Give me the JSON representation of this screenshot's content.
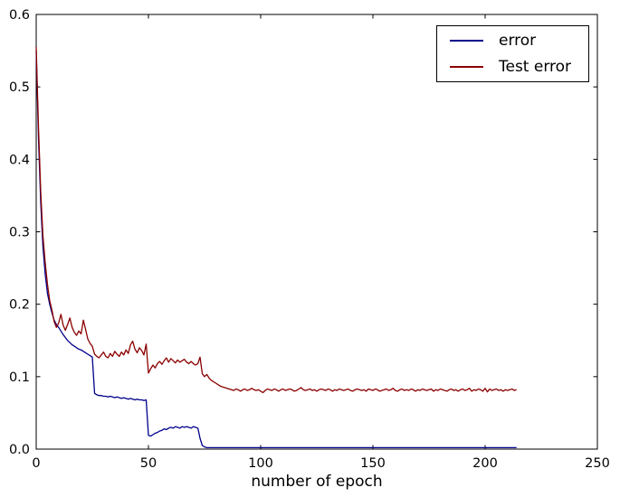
{
  "figure": {
    "background": "#ffffff",
    "frame_color": "#000000"
  },
  "chart_data": {
    "type": "line",
    "title": "",
    "xlabel": "number of epoch",
    "ylabel": "",
    "xlim": [
      0,
      250
    ],
    "ylim": [
      0.0,
      0.6
    ],
    "xticks": [
      "0",
      "50",
      "100",
      "150",
      "200",
      "250"
    ],
    "yticks": [
      "0.0",
      "0.1",
      "0.2",
      "0.3",
      "0.4",
      "0.5",
      "0.6"
    ],
    "grid": false,
    "legend_position": "upper right",
    "x_unit": "epoch",
    "series": [
      {
        "name": "error",
        "color": "#00008b",
        "x_step": 1,
        "values": [
          0.55,
          0.43,
          0.34,
          0.28,
          0.242,
          0.215,
          0.2,
          0.188,
          0.178,
          0.172,
          0.168,
          0.163,
          0.158,
          0.154,
          0.15,
          0.147,
          0.144,
          0.142,
          0.14,
          0.138,
          0.137,
          0.135,
          0.133,
          0.131,
          0.129,
          0.127,
          0.077,
          0.075,
          0.074,
          0.074,
          0.073,
          0.073,
          0.072,
          0.073,
          0.072,
          0.071,
          0.072,
          0.071,
          0.07,
          0.071,
          0.07,
          0.069,
          0.07,
          0.069,
          0.068,
          0.069,
          0.068,
          0.068,
          0.067,
          0.068,
          0.019,
          0.018,
          0.02,
          0.022,
          0.023,
          0.025,
          0.026,
          0.028,
          0.027,
          0.029,
          0.03,
          0.029,
          0.031,
          0.03,
          0.029,
          0.031,
          0.03,
          0.031,
          0.03,
          0.029,
          0.031,
          0.03,
          0.029,
          0.015,
          0.005,
          0.003,
          0.002,
          0.002,
          0.002,
          0.002,
          0.002,
          0.002,
          0.002,
          0.002,
          0.002,
          0.002,
          0.002,
          0.002,
          0.002,
          0.002,
          0.002,
          0.002,
          0.002,
          0.002,
          0.002,
          0.002,
          0.002,
          0.002,
          0.002,
          0.002,
          0.002,
          0.002,
          0.002,
          0.002,
          0.002,
          0.002,
          0.002,
          0.002,
          0.002,
          0.002,
          0.002,
          0.002,
          0.002,
          0.002,
          0.002,
          0.002,
          0.002,
          0.002,
          0.002,
          0.002,
          0.002,
          0.002,
          0.002,
          0.002,
          0.002,
          0.002,
          0.002,
          0.002,
          0.002,
          0.002,
          0.002,
          0.002,
          0.002,
          0.002,
          0.002,
          0.002,
          0.002,
          0.002,
          0.002,
          0.002,
          0.002,
          0.002,
          0.002,
          0.002,
          0.002,
          0.002,
          0.002,
          0.002,
          0.002,
          0.002,
          0.002,
          0.002,
          0.002,
          0.002,
          0.002,
          0.002,
          0.002,
          0.002,
          0.002,
          0.002,
          0.002,
          0.002,
          0.002,
          0.002,
          0.002,
          0.002,
          0.002,
          0.002,
          0.002,
          0.002,
          0.002,
          0.002,
          0.002,
          0.002,
          0.002,
          0.002,
          0.002,
          0.002,
          0.002,
          0.002,
          0.002,
          0.002,
          0.002,
          0.002,
          0.002,
          0.002,
          0.002,
          0.002,
          0.002,
          0.002,
          0.002,
          0.002,
          0.002,
          0.002,
          0.002,
          0.002,
          0.002,
          0.002,
          0.002,
          0.002,
          0.002,
          0.002,
          0.002,
          0.002,
          0.002,
          0.002,
          0.002,
          0.002,
          0.002,
          0.002,
          0.002,
          0.002,
          0.002,
          0.002,
          0.002
        ]
      },
      {
        "name": "Test error",
        "color": "#8b0000",
        "x_step": 1,
        "values": [
          0.555,
          0.445,
          0.355,
          0.295,
          0.258,
          0.228,
          0.205,
          0.192,
          0.176,
          0.168,
          0.174,
          0.186,
          0.171,
          0.164,
          0.172,
          0.181,
          0.168,
          0.161,
          0.157,
          0.163,
          0.159,
          0.178,
          0.165,
          0.152,
          0.146,
          0.142,
          0.131,
          0.128,
          0.126,
          0.13,
          0.134,
          0.128,
          0.126,
          0.132,
          0.128,
          0.135,
          0.131,
          0.128,
          0.134,
          0.13,
          0.137,
          0.132,
          0.144,
          0.149,
          0.138,
          0.133,
          0.14,
          0.136,
          0.13,
          0.145,
          0.105,
          0.111,
          0.116,
          0.112,
          0.118,
          0.121,
          0.117,
          0.122,
          0.126,
          0.12,
          0.125,
          0.122,
          0.119,
          0.123,
          0.12,
          0.122,
          0.124,
          0.12,
          0.118,
          0.121,
          0.118,
          0.116,
          0.118,
          0.127,
          0.104,
          0.1,
          0.103,
          0.098,
          0.095,
          0.093,
          0.091,
          0.089,
          0.087,
          0.086,
          0.085,
          0.084,
          0.083,
          0.082,
          0.081,
          0.083,
          0.082,
          0.08,
          0.082,
          0.083,
          0.081,
          0.082,
          0.084,
          0.082,
          0.081,
          0.082,
          0.08,
          0.078,
          0.081,
          0.083,
          0.082,
          0.081,
          0.083,
          0.082,
          0.08,
          0.082,
          0.083,
          0.081,
          0.082,
          0.083,
          0.082,
          0.08,
          0.081,
          0.083,
          0.085,
          0.082,
          0.081,
          0.082,
          0.083,
          0.081,
          0.082,
          0.08,
          0.082,
          0.083,
          0.082,
          0.081,
          0.083,
          0.082,
          0.08,
          0.082,
          0.081,
          0.083,
          0.082,
          0.081,
          0.082,
          0.083,
          0.081,
          0.08,
          0.082,
          0.083,
          0.082,
          0.081,
          0.082,
          0.08,
          0.083,
          0.082,
          0.081,
          0.083,
          0.082,
          0.08,
          0.081,
          0.082,
          0.083,
          0.081,
          0.082,
          0.084,
          0.081,
          0.08,
          0.082,
          0.083,
          0.081,
          0.082,
          0.081,
          0.083,
          0.082,
          0.08,
          0.082,
          0.081,
          0.083,
          0.082,
          0.081,
          0.082,
          0.083,
          0.08,
          0.082,
          0.081,
          0.083,
          0.082,
          0.081,
          0.08,
          0.082,
          0.083,
          0.081,
          0.082,
          0.08,
          0.082,
          0.083,
          0.081,
          0.082,
          0.084,
          0.08,
          0.082,
          0.081,
          0.083,
          0.082,
          0.08,
          0.084,
          0.079,
          0.083,
          0.081,
          0.082,
          0.083,
          0.081,
          0.082,
          0.08,
          0.082,
          0.081,
          0.082,
          0.083,
          0.081,
          0.082
        ]
      }
    ]
  }
}
